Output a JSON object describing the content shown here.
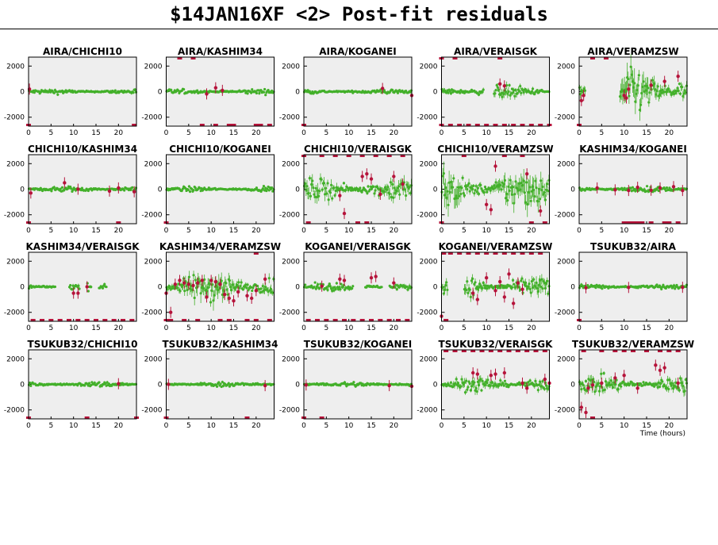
{
  "title": "$14JAN16XF <2> Post-fit residuals",
  "colors": {
    "panel_bg": "#eeeeee",
    "good": "#43b02a",
    "flagged": "#b5133a",
    "axis": "#000000"
  },
  "chart_data": {
    "type": "scatter",
    "layout": "5x4 grid of small multiples",
    "xlabel": "Time (hours)",
    "xlim": [
      0,
      24
    ],
    "ylim": [
      -2700,
      2700
    ],
    "xticks": [
      0,
      5,
      10,
      15,
      20
    ],
    "yticks": [
      2000,
      0,
      -2000
    ],
    "xtick_labels": [
      "0",
      "5",
      "10",
      "15",
      "20"
    ],
    "ytick_labels": [
      "2000",
      "0",
      "-2000"
    ],
    "series_colors": {
      "good": "#43b02a",
      "flagged": "#b5133a"
    },
    "panels": [
      {
        "name": "AIRA/CHICHI10",
        "noise": 60,
        "flagged": [
          [
            0,
            -2600
          ],
          [
            0.2,
            200
          ],
          [
            23.5,
            -2600
          ]
        ],
        "gaps": []
      },
      {
        "name": "AIRA/KASHIM34",
        "noise": 60,
        "flagged": [
          [
            9,
            -180
          ],
          [
            11,
            300
          ],
          [
            12.5,
            100
          ],
          [
            3,
            2650
          ],
          [
            6,
            2650
          ],
          [
            8,
            -2600
          ],
          [
            11,
            -2600
          ],
          [
            14,
            -2600
          ],
          [
            15,
            -2600
          ],
          [
            20,
            -2600
          ],
          [
            21,
            -2600
          ],
          [
            23,
            -2600
          ]
        ],
        "gaps": []
      },
      {
        "name": "AIRA/KOGANEI",
        "noise": 60,
        "flagged": [
          [
            0,
            -2600
          ],
          [
            17.5,
            250
          ],
          [
            24,
            -300
          ]
        ],
        "gaps": []
      },
      {
        "name": "AIRA/VERAISGK",
        "noise": 150,
        "flagged": [
          [
            13,
            600
          ],
          [
            14,
            450
          ],
          [
            0,
            2650
          ],
          [
            3,
            2650
          ],
          [
            13,
            2650
          ],
          [
            0,
            -2600
          ],
          [
            2,
            -2600
          ],
          [
            4,
            -2600
          ],
          [
            6,
            -2600
          ],
          [
            8,
            -2600
          ],
          [
            10,
            -2600
          ],
          [
            12,
            -2600
          ],
          [
            14,
            -2600
          ],
          [
            16,
            -2600
          ],
          [
            18,
            -2600
          ],
          [
            20,
            -2600
          ],
          [
            22,
            -2600
          ],
          [
            24,
            -2600
          ]
        ],
        "gaps": [
          [
            9.5,
            11.5
          ]
        ]
      },
      {
        "name": "AIRA/VERAMZSW",
        "noise": 500,
        "flagged": [
          [
            0.5,
            -700
          ],
          [
            1,
            -300
          ],
          [
            10,
            -300
          ],
          [
            10.5,
            -500
          ],
          [
            11,
            200
          ],
          [
            16,
            500
          ],
          [
            19,
            800
          ],
          [
            22,
            1200
          ],
          [
            3,
            2650
          ],
          [
            6,
            2650
          ],
          [
            0,
            -2600
          ]
        ],
        "gaps": [
          [
            1.5,
            9
          ]
        ]
      },
      {
        "name": "CHICHI10/KASHIM34",
        "noise": 70,
        "flagged": [
          [
            0.5,
            -300
          ],
          [
            8,
            500
          ],
          [
            11,
            0
          ],
          [
            18,
            -150
          ],
          [
            20,
            100
          ],
          [
            23.5,
            -200
          ],
          [
            0,
            -2600
          ],
          [
            20,
            -2600
          ]
        ],
        "gaps": []
      },
      {
        "name": "CHICHI10/KOGANEI",
        "noise": 60,
        "flagged": [
          [
            0,
            -2600
          ]
        ],
        "gaps": []
      },
      {
        "name": "CHICHI10/VERAISGK",
        "noise": 250,
        "flagged": [
          [
            8,
            -500
          ],
          [
            9,
            -1900
          ],
          [
            13,
            1000
          ],
          [
            14,
            1200
          ],
          [
            15,
            800
          ],
          [
            17,
            -400
          ],
          [
            20,
            1000
          ],
          [
            22,
            400
          ],
          [
            1,
            -2600
          ],
          [
            12,
            -2600
          ],
          [
            14,
            -2600
          ],
          [
            0,
            2650
          ],
          [
            4,
            2650
          ],
          [
            7,
            2650
          ],
          [
            10,
            2650
          ],
          [
            13,
            2650
          ],
          [
            16,
            2650
          ],
          [
            19,
            2650
          ],
          [
            22,
            2650
          ]
        ],
        "gaps": []
      },
      {
        "name": "CHICHI10/VERAMZSW",
        "noise": 450,
        "flagged": [
          [
            10,
            -1200
          ],
          [
            11,
            -1600
          ],
          [
            12,
            1800
          ],
          [
            19,
            1200
          ],
          [
            22,
            -1700
          ],
          [
            0,
            -2600
          ],
          [
            20,
            -2600
          ],
          [
            23,
            -2600
          ],
          [
            5,
            2650
          ],
          [
            14,
            2650
          ],
          [
            18,
            2650
          ]
        ],
        "gaps": []
      },
      {
        "name": "KASHIM34/KOGANEI",
        "noise": 70,
        "flagged": [
          [
            4,
            100
          ],
          [
            8,
            -50
          ],
          [
            11,
            -100
          ],
          [
            13,
            150
          ],
          [
            16,
            -80
          ],
          [
            18,
            100
          ],
          [
            21,
            200
          ],
          [
            23,
            -100
          ],
          [
            10,
            -2600
          ],
          [
            11,
            -2600
          ],
          [
            12,
            -2600
          ],
          [
            13,
            -2600
          ],
          [
            14,
            -2600
          ],
          [
            16,
            -2600
          ],
          [
            19,
            -2600
          ],
          [
            20,
            -2600
          ],
          [
            22,
            -2600
          ]
        ],
        "gaps": []
      },
      {
        "name": "KASHIM34/VERAISGK",
        "noise": 80,
        "flagged": [
          [
            10,
            -500
          ],
          [
            11,
            -500
          ],
          [
            13,
            0
          ],
          [
            1,
            -2650
          ],
          [
            3,
            -2650
          ],
          [
            5,
            -2650
          ],
          [
            7,
            -2650
          ],
          [
            9,
            -2650
          ],
          [
            11,
            -2650
          ],
          [
            13,
            -2650
          ],
          [
            15,
            -2650
          ],
          [
            17,
            -2650
          ],
          [
            19,
            -2650
          ],
          [
            21,
            -2650
          ],
          [
            23,
            -2650
          ]
        ],
        "gaps": [
          [
            6,
            9
          ],
          [
            11.5,
            13
          ],
          [
            14,
            15.5
          ],
          [
            17.5,
            24
          ]
        ]
      },
      {
        "name": "KASHIM34/VERAMZSW",
        "noise": 350,
        "flagged": [
          [
            0,
            -500
          ],
          [
            1,
            -2000
          ],
          [
            2,
            200
          ],
          [
            3,
            500
          ],
          [
            4,
            300
          ],
          [
            5,
            200
          ],
          [
            6,
            100
          ],
          [
            7,
            300
          ],
          [
            8,
            500
          ],
          [
            9,
            -800
          ],
          [
            10,
            500
          ],
          [
            11,
            400
          ],
          [
            12,
            200
          ],
          [
            13,
            -600
          ],
          [
            14,
            -900
          ],
          [
            15,
            -1100
          ],
          [
            16,
            -400
          ],
          [
            18,
            -700
          ],
          [
            19,
            -900
          ],
          [
            20,
            -300
          ],
          [
            22,
            600
          ],
          [
            0,
            -2650
          ],
          [
            1,
            -2650
          ],
          [
            4,
            -2650
          ],
          [
            7,
            -2650
          ],
          [
            12,
            -2650
          ],
          [
            14,
            -2650
          ],
          [
            18,
            -2650
          ],
          [
            20,
            -2650
          ],
          [
            23,
            -2650
          ],
          [
            20,
            2650
          ]
        ],
        "gaps": []
      },
      {
        "name": "KOGANEI/VERAISGK",
        "noise": 100,
        "flagged": [
          [
            4,
            50
          ],
          [
            8,
            600
          ],
          [
            9,
            500
          ],
          [
            15,
            700
          ],
          [
            16,
            800
          ],
          [
            20,
            300
          ],
          [
            1,
            -2650
          ],
          [
            3,
            -2650
          ],
          [
            5,
            -2650
          ],
          [
            7,
            -2650
          ],
          [
            9,
            -2650
          ],
          [
            11,
            -2650
          ],
          [
            13,
            -2650
          ],
          [
            15,
            -2650
          ],
          [
            17,
            -2650
          ],
          [
            19,
            -2650
          ],
          [
            21,
            -2650
          ],
          [
            23,
            -2650
          ]
        ],
        "gaps": [
          [
            11,
            13.5
          ],
          [
            17.5,
            19
          ]
        ]
      },
      {
        "name": "KOGANEI/VERAMZSW",
        "noise": 250,
        "flagged": [
          [
            0,
            -2300
          ],
          [
            1,
            -2600
          ],
          [
            7,
            -500
          ],
          [
            8,
            -1000
          ],
          [
            10,
            700
          ],
          [
            12,
            -300
          ],
          [
            13,
            400
          ],
          [
            14,
            -800
          ],
          [
            15,
            1000
          ],
          [
            16,
            -1300
          ],
          [
            17,
            300
          ],
          [
            18,
            -200
          ],
          [
            0.5,
            2650
          ],
          [
            2,
            2650
          ],
          [
            4,
            2650
          ],
          [
            6,
            2650
          ],
          [
            8,
            2650
          ],
          [
            10,
            2650
          ],
          [
            12,
            2650
          ],
          [
            14,
            2650
          ],
          [
            16,
            2650
          ],
          [
            18,
            2650
          ],
          [
            20,
            2650
          ],
          [
            22,
            2650
          ]
        ],
        "gaps": [
          [
            1.5,
            5
          ]
        ]
      },
      {
        "name": "TSUKUB32/AIRA",
        "noise": 60,
        "flagged": [
          [
            0,
            -2600
          ],
          [
            1.5,
            -80
          ],
          [
            11,
            -50
          ],
          [
            23,
            -40
          ]
        ],
        "gaps": []
      },
      {
        "name": "TSUKUB32/CHICHI10",
        "noise": 60,
        "flagged": [
          [
            0,
            -2650
          ],
          [
            13,
            -2650
          ],
          [
            24,
            -2650
          ],
          [
            20,
            50
          ]
        ],
        "gaps": []
      },
      {
        "name": "TSUKUB32/KASHIM34",
        "noise": 60,
        "flagged": [
          [
            0,
            -2650
          ],
          [
            0.5,
            0
          ],
          [
            18,
            -2650
          ],
          [
            22,
            -100
          ]
        ],
        "gaps": []
      },
      {
        "name": "TSUKUB32/KOGANEI",
        "noise": 60,
        "flagged": [
          [
            0,
            -2650
          ],
          [
            0.5,
            -50
          ],
          [
            4,
            -2650
          ],
          [
            19,
            -100
          ],
          [
            24,
            -150
          ]
        ],
        "gaps": []
      },
      {
        "name": "TSUKUB32/VERAISGK",
        "noise": 180,
        "flagged": [
          [
            7,
            900
          ],
          [
            8,
            800
          ],
          [
            11,
            700
          ],
          [
            12,
            800
          ],
          [
            14,
            900
          ],
          [
            18,
            100
          ],
          [
            19,
            -300
          ],
          [
            23,
            400
          ],
          [
            24,
            100
          ],
          [
            1,
            2650
          ],
          [
            3,
            2650
          ],
          [
            5,
            2650
          ],
          [
            7,
            2650
          ],
          [
            9,
            2650
          ],
          [
            11,
            2650
          ],
          [
            13,
            2650
          ],
          [
            15,
            2650
          ],
          [
            17,
            2650
          ],
          [
            19,
            2650
          ],
          [
            21,
            2650
          ],
          [
            23,
            2650
          ]
        ],
        "gaps": []
      },
      {
        "name": "TSUKUB32/VERAMZSW",
        "noise": 200,
        "flagged": [
          [
            0.5,
            -1800
          ],
          [
            1.5,
            -2200
          ],
          [
            3,
            -2600
          ],
          [
            2,
            -300
          ],
          [
            3,
            -50
          ],
          [
            5,
            100
          ],
          [
            8,
            500
          ],
          [
            10,
            700
          ],
          [
            13,
            -300
          ],
          [
            17,
            1500
          ],
          [
            18,
            1100
          ],
          [
            19,
            1300
          ],
          [
            22,
            100
          ],
          [
            1,
            2650
          ],
          [
            5,
            2650
          ],
          [
            8,
            2650
          ],
          [
            10,
            2650
          ],
          [
            12,
            2650
          ],
          [
            15,
            2650
          ],
          [
            18,
            2650
          ],
          [
            20,
            2650
          ],
          [
            22,
            2650
          ]
        ],
        "gaps": []
      }
    ]
  }
}
